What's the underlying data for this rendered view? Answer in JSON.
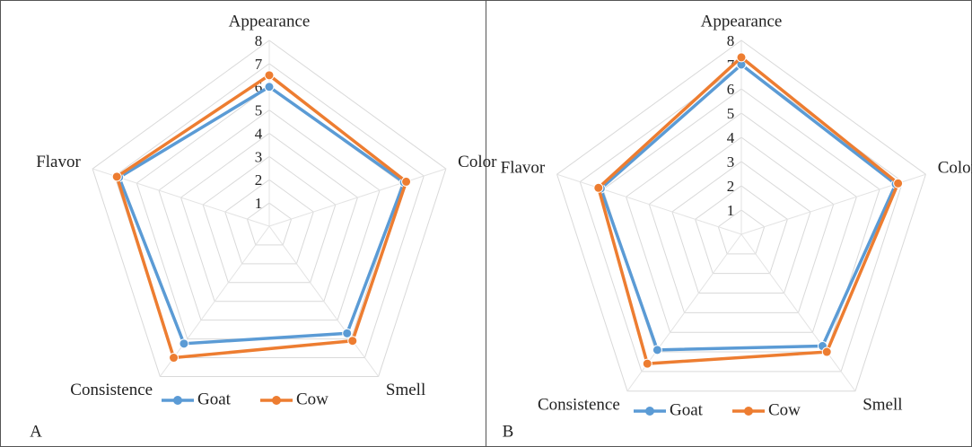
{
  "chart_data": [
    {
      "type": "radar",
      "panel": "A",
      "categories": [
        "Appearance",
        "Color",
        "Smell",
        "Consistence",
        "Flavor"
      ],
      "series": [
        {
          "name": "Goat",
          "color": "#5b9bd5",
          "values": [
            6.0,
            6.1,
            5.7,
            6.25,
            6.8
          ]
        },
        {
          "name": "Cow",
          "color": "#ed7d31",
          "values": [
            6.5,
            6.2,
            6.1,
            7.0,
            6.9
          ]
        }
      ],
      "rlim": [
        0,
        8
      ],
      "rticks": [
        1,
        2,
        3,
        4,
        5,
        6,
        7,
        8
      ],
      "grid": true,
      "legend": "bottom"
    },
    {
      "type": "radar",
      "panel": "B",
      "categories": [
        "Appearance",
        "Color",
        "Smell",
        "Consistence",
        "Flavor"
      ],
      "series": [
        {
          "name": "Goat",
          "color": "#5b9bd5",
          "values": [
            7.0,
            6.7,
            5.7,
            5.9,
            6.1
          ]
        },
        {
          "name": "Cow",
          "color": "#ed7d31",
          "values": [
            7.3,
            6.8,
            6.0,
            6.6,
            6.2
          ]
        }
      ],
      "rlim": [
        0,
        8
      ],
      "rticks": [
        1,
        2,
        3,
        4,
        5,
        6,
        7,
        8
      ],
      "grid": true,
      "legend": "bottom"
    }
  ]
}
